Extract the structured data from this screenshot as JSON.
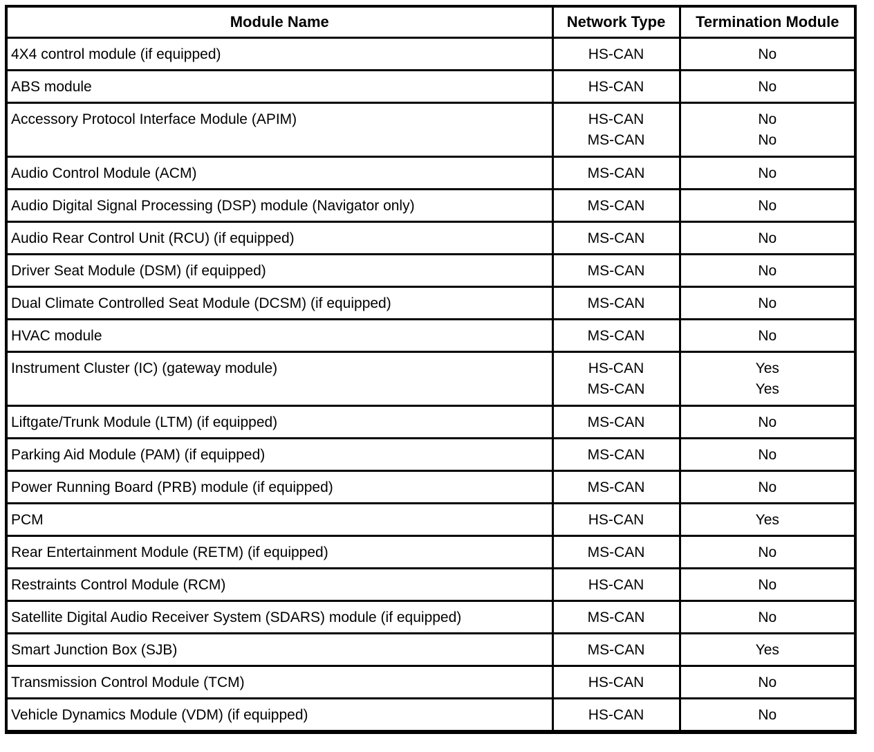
{
  "table": {
    "colors": {
      "border": "#000000",
      "background": "#ffffff",
      "text": "#000000"
    },
    "columns": [
      {
        "label": "Module Name"
      },
      {
        "label": "Network Type"
      },
      {
        "label": "Termination Module"
      }
    ],
    "rows": [
      {
        "module": "4X4 control module (if equipped)",
        "networks": [
          "HS-CAN"
        ],
        "termination": [
          "No"
        ]
      },
      {
        "module": "ABS module",
        "networks": [
          "HS-CAN"
        ],
        "termination": [
          "No"
        ]
      },
      {
        "module": "Accessory Protocol Interface Module (APIM)",
        "networks": [
          "HS-CAN",
          "MS-CAN"
        ],
        "termination": [
          "No",
          "No"
        ]
      },
      {
        "module": "Audio Control Module (ACM)",
        "networks": [
          "MS-CAN"
        ],
        "termination": [
          "No"
        ]
      },
      {
        "module": "Audio Digital Signal Processing (DSP) module (Navigator only)",
        "networks": [
          "MS-CAN"
        ],
        "termination": [
          "No"
        ]
      },
      {
        "module": "Audio Rear Control Unit (RCU) (if equipped)",
        "networks": [
          "MS-CAN"
        ],
        "termination": [
          "No"
        ]
      },
      {
        "module": "Driver Seat Module (DSM) (if equipped)",
        "networks": [
          "MS-CAN"
        ],
        "termination": [
          "No"
        ]
      },
      {
        "module": "Dual Climate Controlled Seat Module (DCSM) (if equipped)",
        "networks": [
          "MS-CAN"
        ],
        "termination": [
          "No"
        ]
      },
      {
        "module": "HVAC module",
        "networks": [
          "MS-CAN"
        ],
        "termination": [
          "No"
        ]
      },
      {
        "module": "Instrument Cluster (IC) (gateway module)",
        "networks": [
          "HS-CAN",
          "MS-CAN"
        ],
        "termination": [
          "Yes",
          "Yes"
        ]
      },
      {
        "module": "Liftgate/Trunk Module (LTM) (if equipped)",
        "networks": [
          "MS-CAN"
        ],
        "termination": [
          "No"
        ]
      },
      {
        "module": "Parking Aid Module (PAM) (if equipped)",
        "networks": [
          "MS-CAN"
        ],
        "termination": [
          "No"
        ]
      },
      {
        "module": "Power Running Board (PRB) module (if equipped)",
        "networks": [
          "MS-CAN"
        ],
        "termination": [
          "No"
        ]
      },
      {
        "module": "PCM",
        "networks": [
          "HS-CAN"
        ],
        "termination": [
          "Yes"
        ]
      },
      {
        "module": "Rear Entertainment Module (RETM) (if equipped)",
        "networks": [
          "MS-CAN"
        ],
        "termination": [
          "No"
        ]
      },
      {
        "module": "Restraints Control Module (RCM)",
        "networks": [
          "HS-CAN"
        ],
        "termination": [
          "No"
        ]
      },
      {
        "module": "Satellite Digital Audio Receiver System (SDARS) module (if equipped)",
        "networks": [
          "MS-CAN"
        ],
        "termination": [
          "No"
        ]
      },
      {
        "module": "Smart Junction Box (SJB)",
        "networks": [
          "MS-CAN"
        ],
        "termination": [
          "Yes"
        ]
      },
      {
        "module": "Transmission Control Module (TCM)",
        "networks": [
          "HS-CAN"
        ],
        "termination": [
          "No"
        ]
      },
      {
        "module": "Vehicle Dynamics Module (VDM) (if equipped)",
        "networks": [
          "HS-CAN"
        ],
        "termination": [
          "No"
        ]
      }
    ]
  }
}
